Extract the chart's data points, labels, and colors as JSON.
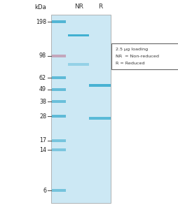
{
  "bg_color": "#cce8f4",
  "white_bg": "#ffffff",
  "ladder_labels": [
    "198",
    "98",
    "62",
    "49",
    "38",
    "28",
    "17",
    "14",
    "6"
  ],
  "ladder_mw": [
    198,
    98,
    62,
    49,
    38,
    28,
    17,
    14,
    6
  ],
  "ladder_bands": [
    {
      "mw": 198,
      "color": "#52b5d4",
      "alpha": 1.0
    },
    {
      "mw": 98,
      "color": "#c090aa",
      "alpha": 0.75
    },
    {
      "mw": 62,
      "color": "#52b5d4",
      "alpha": 0.9
    },
    {
      "mw": 49,
      "color": "#52b5d4",
      "alpha": 0.85
    },
    {
      "mw": 38,
      "color": "#52b5d4",
      "alpha": 0.8
    },
    {
      "mw": 28,
      "color": "#52b5d4",
      "alpha": 0.9
    },
    {
      "mw": 17,
      "color": "#52b5d4",
      "alpha": 0.7
    },
    {
      "mw": 14,
      "color": "#52b5d4",
      "alpha": 0.65
    },
    {
      "mw": 6,
      "color": "#52b5d4",
      "alpha": 0.72
    }
  ],
  "nr_bands": [
    {
      "mw": 150,
      "color": "#3aadd0",
      "alpha": 0.95
    },
    {
      "mw": 82,
      "color": "#3aadd0",
      "alpha": 0.38
    }
  ],
  "r_bands": [
    {
      "mw": 53,
      "color": "#3aadd0",
      "alpha": 0.9
    },
    {
      "mw": 27,
      "color": "#3aadd0",
      "alpha": 0.78
    }
  ],
  "legend_text": [
    "2.5 μg loading",
    "NR  = Non-reduced",
    "R = Reduced"
  ],
  "mw_min": 5,
  "mw_max": 230
}
